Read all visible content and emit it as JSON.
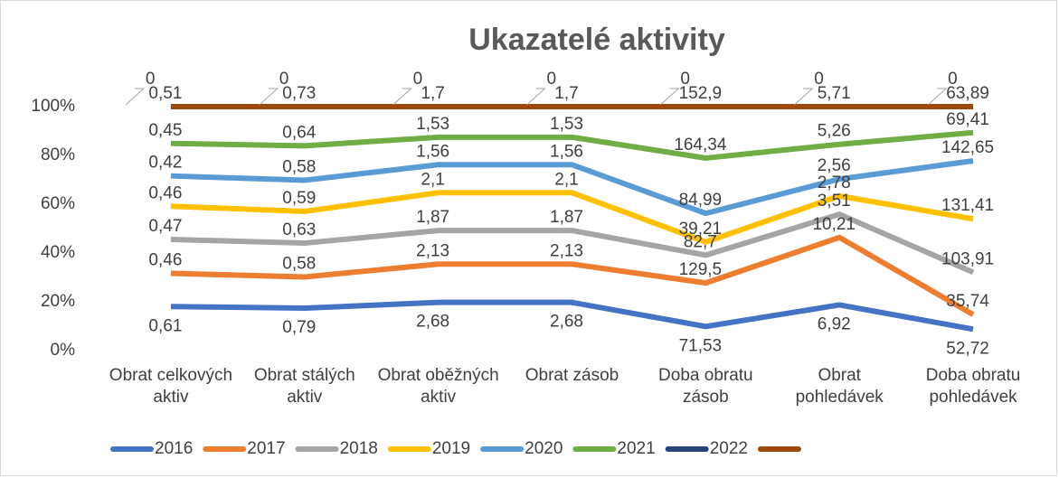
{
  "chart_data": {
    "type": "line",
    "stacked_percent": true,
    "title": "Ukazatelé aktivity",
    "categories": [
      "Obrat celkových aktiv",
      "Obrat stálých aktiv",
      "Obrat oběžných aktiv",
      "Obrat zásob",
      "Doba obratu zásob",
      "Obrat pohledávek",
      "Doba obratu pohledávek"
    ],
    "series": [
      {
        "name": "2016",
        "color": "#4472c4",
        "values": [
          0.61,
          0.79,
          2.68,
          2.68,
          71.53,
          6.92,
          52.72
        ],
        "value_labels": [
          "0,61",
          "0,79",
          "2,68",
          "2,68",
          "71,53",
          "6,92",
          "52,72"
        ]
      },
      {
        "name": "2017",
        "color": "#ed7d31",
        "values": [
          0.46,
          0.58,
          2.13,
          2.13,
          129.5,
          10.21,
          35.74
        ],
        "value_labels": [
          "0,46",
          "0,58",
          "2,13",
          "2,13",
          "129,5",
          "10,21",
          "35,74"
        ]
      },
      {
        "name": "2018",
        "color": "#a5a5a5",
        "values": [
          0.47,
          0.63,
          1.87,
          1.87,
          82.7,
          3.51,
          103.91
        ],
        "value_labels": [
          "0,47",
          "0,63",
          "1,87",
          "1,87",
          "82,7",
          "3,51",
          "103,91"
        ]
      },
      {
        "name": "2019",
        "color": "#ffc000",
        "values": [
          0.46,
          0.59,
          2.1,
          2.1,
          39.21,
          2.78,
          131.41
        ],
        "value_labels": [
          "0,46",
          "0,59",
          "2,1",
          "2,1",
          "39,21",
          "2,78",
          "131,41"
        ]
      },
      {
        "name": "2020",
        "color": "#5b9bd5",
        "values": [
          0.42,
          0.58,
          1.56,
          1.56,
          84.99,
          2.56,
          142.65
        ],
        "value_labels": [
          "0,42",
          "0,58",
          "1,56",
          "1,56",
          "84,99",
          "2,56",
          "142,65"
        ]
      },
      {
        "name": "2021",
        "color": "#70ad47",
        "values": [
          0.45,
          0.64,
          1.53,
          1.53,
          164.34,
          5.26,
          69.41
        ],
        "value_labels": [
          "0,45",
          "0,64",
          "1,53",
          "1,53",
          "164,34",
          "5,26",
          "69,41"
        ]
      },
      {
        "name": "2022",
        "color": "#264478",
        "values": [
          0.51,
          0.73,
          1.7,
          1.7,
          152.9,
          5.71,
          63.89
        ],
        "value_labels": [
          "0,51",
          "0,73",
          "1,7",
          "1,7",
          "152,9",
          "5,71",
          "63,89"
        ]
      },
      {
        "color": "#9e480e",
        "values": [
          0,
          0,
          0,
          0,
          0,
          0,
          0
        ]
      }
    ],
    "ylim": [
      0,
      100
    ],
    "yticks": [
      {
        "value": 0,
        "label": "0%"
      },
      {
        "value": 20,
        "label": "20%"
      },
      {
        "value": 40,
        "label": "40%"
      },
      {
        "value": 60,
        "label": "60%"
      },
      {
        "value": 80,
        "label": "80%"
      },
      {
        "value": 100,
        "label": "100%"
      }
    ],
    "grid": false,
    "legend": "bottom"
  }
}
